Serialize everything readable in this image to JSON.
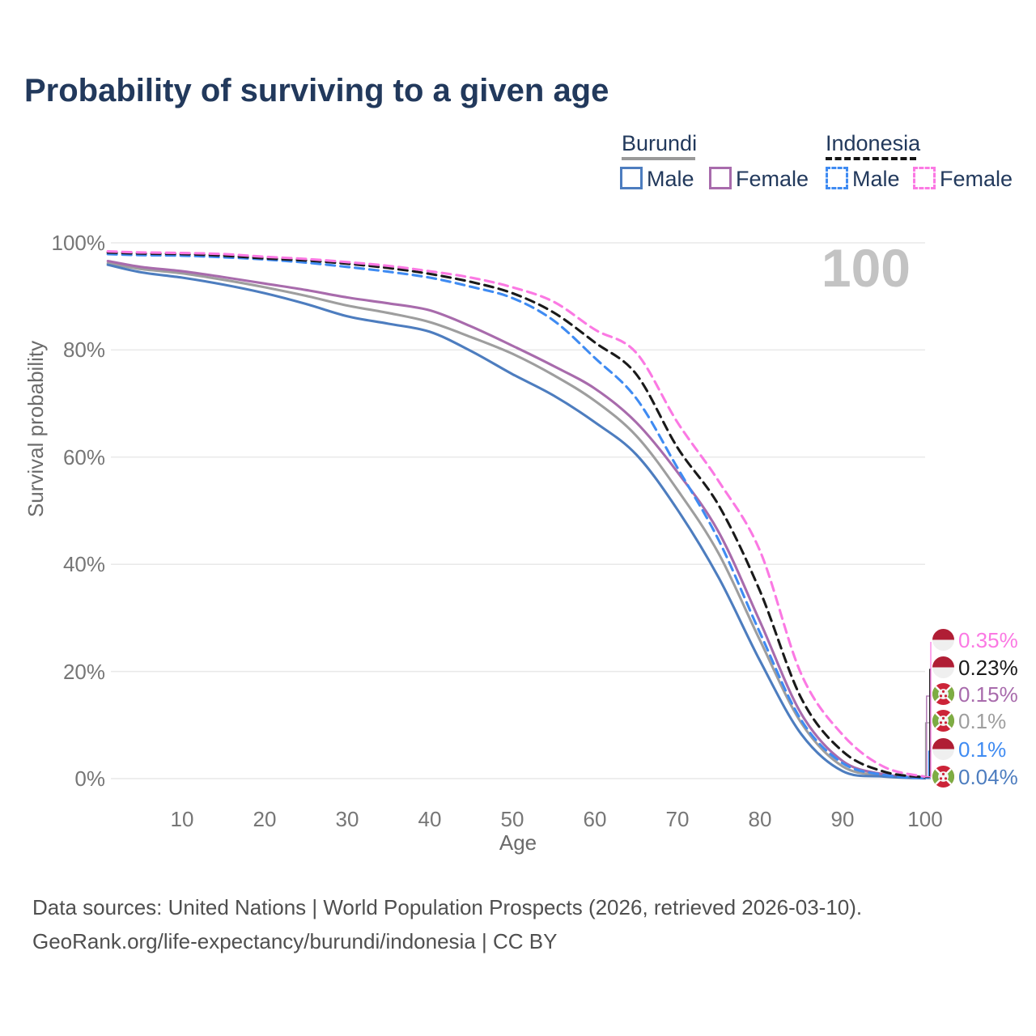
{
  "title": "Probability of surviving to a given age",
  "watermark": "100",
  "legend": {
    "burundi": {
      "name": "Burundi",
      "male_label": "Male",
      "female_label": "Female"
    },
    "indonesia": {
      "name": "Indonesia",
      "male_label": "Male",
      "female_label": "Female"
    }
  },
  "colors": {
    "burundi_male": "#4d7dbf",
    "burundi_female": "#a86bac",
    "burundi_all": "#9e9e9e",
    "indonesia_male": "#3f8bf2",
    "indonesia_female": "#fb79e3",
    "indonesia_all": "#1a1a1a",
    "gridline": "#e9e9e9",
    "navy_text": "#22395c"
  },
  "chart_data": {
    "type": "line",
    "title": "Probability of surviving to a given age",
    "xlabel": "Age",
    "ylabel": "Survival probability",
    "xlim": [
      1,
      100
    ],
    "ylim": [
      0,
      100
    ],
    "grid": "horizontal-only",
    "legend_position": "top-right",
    "xticks": [
      10,
      20,
      30,
      40,
      50,
      60,
      70,
      80,
      90,
      100
    ],
    "ytick_values": [
      0,
      20,
      40,
      60,
      80,
      100
    ],
    "ytick_labels": [
      "0%",
      "20%",
      "40%",
      "60%",
      "80%",
      "100%"
    ],
    "x": [
      1,
      5,
      10,
      15,
      20,
      25,
      30,
      35,
      40,
      45,
      50,
      55,
      60,
      65,
      70,
      75,
      80,
      85,
      90,
      95,
      100
    ],
    "series": [
      {
        "name": "Burundi (both sexes)",
        "country": "Burundi",
        "color": "#9e9e9e",
        "dashed": false,
        "values": [
          96.2,
          95.1,
          94.3,
          93.1,
          91.7,
          90.1,
          88.3,
          86.9,
          85.2,
          82.4,
          79.3,
          75.3,
          70.5,
          64.0,
          53.9,
          42.0,
          25.8,
          10.4,
          2.3,
          0.6,
          0.1
        ],
        "end_label": "0.1%",
        "flag": "burundi",
        "label_row": 3
      },
      {
        "name": "Burundi Female",
        "country": "Burundi",
        "color": "#a86bac",
        "dashed": false,
        "values": [
          96.6,
          95.5,
          94.7,
          93.6,
          92.4,
          91.2,
          89.8,
          88.7,
          87.4,
          84.4,
          80.8,
          77.0,
          72.8,
          66.5,
          57.2,
          46.0,
          29.3,
          12.1,
          3.3,
          0.8,
          0.15
        ],
        "end_label": "0.15%",
        "flag": "burundi",
        "label_row": 2
      },
      {
        "name": "Burundi Male",
        "country": "Burundi",
        "color": "#4d7dbf",
        "dashed": false,
        "values": [
          95.9,
          94.5,
          93.5,
          92.2,
          90.6,
          88.6,
          86.3,
          84.9,
          83.4,
          79.8,
          75.5,
          71.5,
          66.5,
          60.5,
          50.2,
          37.5,
          22.0,
          8.3,
          1.4,
          0.4,
          0.04
        ],
        "end_label": "0.04%",
        "flag": "burundi",
        "label_row": 5
      },
      {
        "name": "Indonesia Male",
        "country": "Indonesia",
        "color": "#3f8bf2",
        "dashed": true,
        "values": [
          97.9,
          97.7,
          97.6,
          97.3,
          96.9,
          96.3,
          95.5,
          94.6,
          93.5,
          91.8,
          89.7,
          85.5,
          78.5,
          71.0,
          58.0,
          44.5,
          27.2,
          10.9,
          2.9,
          0.7,
          0.1
        ],
        "end_label": "0.1%",
        "flag": "indonesia",
        "label_row": 4
      },
      {
        "name": "Indonesia (both sexes)",
        "country": "Indonesia",
        "color": "#1a1a1a",
        "dashed": true,
        "values": [
          98.2,
          98.0,
          97.9,
          97.6,
          97.1,
          96.7,
          96.1,
          95.3,
          94.2,
          92.7,
          90.6,
          87.0,
          81.4,
          75.5,
          61.8,
          51.0,
          35.0,
          15.0,
          5.1,
          1.3,
          0.23
        ],
        "end_label": "0.23%",
        "flag": "indonesia",
        "label_row": 1
      },
      {
        "name": "Indonesia Female",
        "country": "Indonesia",
        "color": "#fb79e3",
        "dashed": true,
        "values": [
          98.4,
          98.2,
          98.1,
          97.9,
          97.4,
          97.0,
          96.4,
          95.7,
          94.7,
          93.5,
          91.7,
          89.0,
          83.8,
          79.5,
          66.5,
          55.5,
          42.5,
          19.5,
          8.2,
          2.2,
          0.35
        ],
        "end_label": "0.35%",
        "flag": "indonesia",
        "label_row": 0
      }
    ]
  },
  "footer": {
    "line1": "Data sources: United Nations | World Population Prospects (2026, retrieved 2026-03-10).",
    "line2": "GeoRank.org/life-expectancy/burundi/indonesia | CC BY"
  }
}
